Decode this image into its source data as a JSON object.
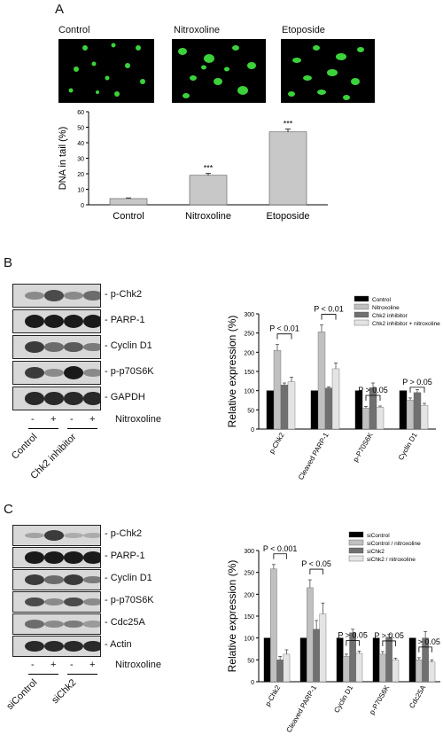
{
  "panelA": {
    "letter": "A",
    "image_labels": [
      "Control",
      "Nitroxoline",
      "Etoposide"
    ],
    "chart_data": {
      "type": "bar",
      "categories": [
        "Control",
        "Nitroxoline",
        "Etoposide"
      ],
      "values": [
        4,
        19,
        47
      ],
      "errors": [
        0.4,
        1.2,
        1.8
      ],
      "significance": [
        "",
        "***",
        "***"
      ],
      "ylabel": "DNA in tail (%)",
      "ylim": [
        0,
        60
      ],
      "yticks": [
        "0",
        "10",
        "20",
        "30",
        "40",
        "50",
        "60"
      ],
      "bar_color": "#c8c8c8"
    }
  },
  "panelB": {
    "letter": "B",
    "blot_labels": [
      "p-Chk2",
      "PARP-1",
      "Cyclin D1",
      "p-p70S6K",
      "GAPDH"
    ],
    "treatment_signs": [
      "-",
      "+",
      "-",
      "+"
    ],
    "treatment_label": "Nitroxoline",
    "group_labels": [
      "Control",
      "Chk2 inhibitor"
    ],
    "chart_data": {
      "type": "bar",
      "categories": [
        "p-Chk2",
        "Cleaved PARP-1",
        "p-P70S6K",
        "Cyclin D1"
      ],
      "series": [
        {
          "name": "Control",
          "values": [
            100,
            100,
            100,
            100
          ],
          "color": "#000000"
        },
        {
          "name": "Nitroxoline",
          "values": [
            205,
            253,
            55,
            75
          ],
          "errors": [
            15,
            18,
            4,
            6
          ],
          "color": "#c0c0c0"
        },
        {
          "name": "Chk2 inhibitor",
          "values": [
            115,
            107,
            108,
            95
          ],
          "errors": [
            5,
            3,
            12,
            8
          ],
          "color": "#707070"
        },
        {
          "name": "Chk2 inhibitor + nitroxoline",
          "values": [
            123,
            157,
            57,
            62
          ],
          "errors": [
            12,
            15,
            3,
            5
          ],
          "color": "#e4e4e4"
        }
      ],
      "pvalues": [
        "P < 0.01",
        "P < 0.01",
        "P > 0.05",
        "P > 0.05"
      ],
      "ylabel": "Relative expression (%)",
      "ylim": [
        0,
        300
      ],
      "yticks": [
        "0",
        "50",
        "100",
        "150",
        "200",
        "250",
        "300"
      ]
    }
  },
  "panelC": {
    "letter": "C",
    "blot_labels": [
      "p-Chk2",
      "PARP-1",
      "Cyclin D1",
      "p-p70S6K",
      "Cdc25A",
      "Actin"
    ],
    "treatment_signs": [
      "-",
      "+",
      "-",
      "+"
    ],
    "treatment_label": "Nitroxoline",
    "group_labels": [
      "siControl",
      "siChk2"
    ],
    "chart_data": {
      "type": "bar",
      "categories": [
        "p-Chk2",
        "Cleaved PARP-1",
        "Cyclin D1",
        "p-P70S6K",
        "Cdc25A"
      ],
      "series": [
        {
          "name": "siControl",
          "values": [
            100,
            100,
            100,
            100,
            100
          ],
          "color": "#000000"
        },
        {
          "name": "siControl / nitroxoline",
          "values": [
            258,
            215,
            58,
            63,
            50
          ],
          "errors": [
            10,
            18,
            5,
            6,
            5
          ],
          "color": "#c0c0c0"
        },
        {
          "name": "siChk2",
          "values": [
            50,
            120,
            112,
            102,
            100
          ],
          "errors": [
            8,
            20,
            8,
            6,
            15
          ],
          "color": "#707070"
        },
        {
          "name": "siChk2 / nitroxoline",
          "values": [
            63,
            155,
            65,
            50,
            45
          ],
          "errors": [
            10,
            25,
            5,
            4,
            5
          ],
          "color": "#e4e4e4"
        }
      ],
      "pvalues": [
        "P < 0.001",
        "P < 0.05",
        "P > 0.05",
        "P > 0.05",
        "P > 0.05"
      ],
      "ylabel": "Relative expression (%)",
      "ylim": [
        0,
        300
      ],
      "yticks": [
        "0",
        "50",
        "100",
        "150",
        "200",
        "250",
        "300"
      ]
    }
  }
}
